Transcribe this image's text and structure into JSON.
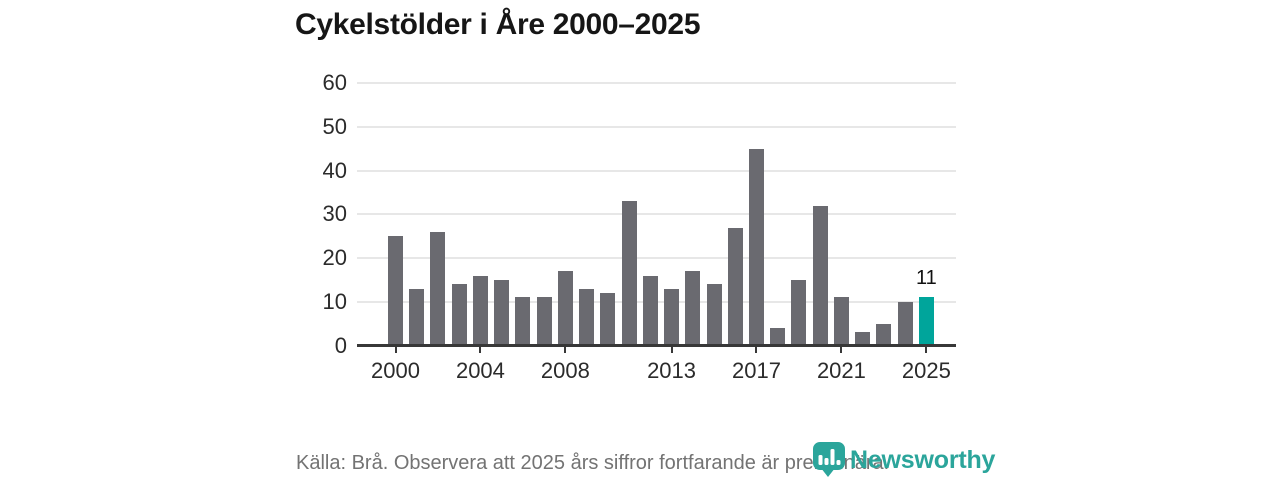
{
  "title": "Cykelstölder i Åre 2000–2025",
  "footer": {
    "source_note": "Källa: Brå. Observera att 2025 års siffror fortfarande är preliminära.",
    "brand": "Newsworthy"
  },
  "colors": {
    "bar": "#6a6a70",
    "highlight": "#00a59b",
    "brand": "#2ba59b",
    "grid": "#e7e7e7",
    "axis": "#383838",
    "tick_text": "#2b2b2b",
    "title_text": "#161616",
    "muted_text": "#737373"
  },
  "chart_data": {
    "type": "bar",
    "title": "Cykelstölder i Åre 2000–2025",
    "x": [
      2000,
      2001,
      2002,
      2003,
      2004,
      2005,
      2006,
      2007,
      2008,
      2009,
      2010,
      2011,
      2012,
      2013,
      2014,
      2015,
      2016,
      2017,
      2018,
      2019,
      2020,
      2021,
      2022,
      2023,
      2024,
      2025
    ],
    "values": [
      25,
      13,
      26,
      14,
      16,
      15,
      11,
      11,
      17,
      13,
      12,
      33,
      16,
      13,
      17,
      14,
      27,
      45,
      4,
      15,
      32,
      11,
      3,
      5,
      10,
      11
    ],
    "highlight_year": 2025,
    "highlight_value_label": "11",
    "y_ticks": [
      0,
      10,
      20,
      30,
      40,
      50,
      60
    ],
    "x_tick_years": [
      2000,
      2004,
      2008,
      2013,
      2017,
      2021,
      2025
    ],
    "ylim": [
      0,
      60
    ],
    "xlabel": "",
    "ylabel": "",
    "grid": true,
    "legend": "none"
  }
}
